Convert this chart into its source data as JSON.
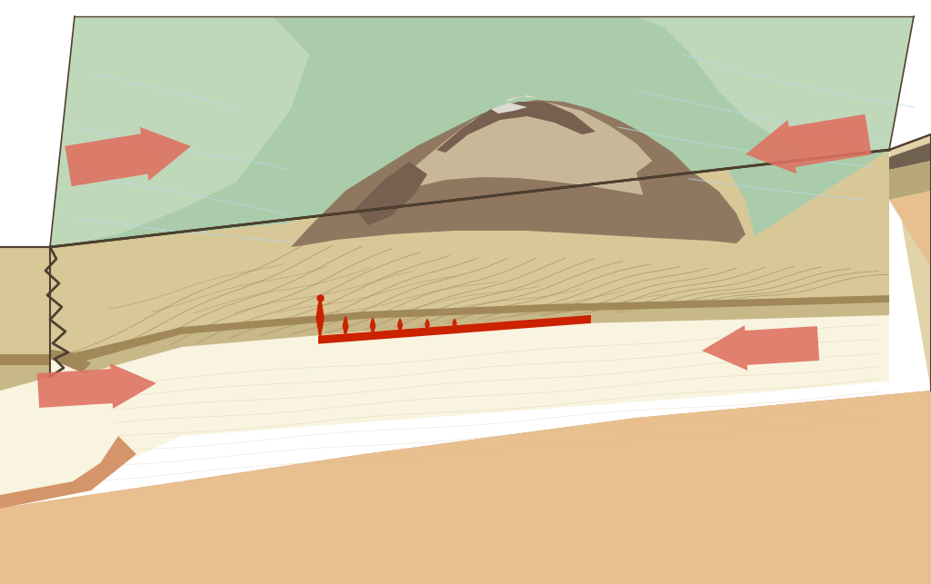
{
  "bg_color": "#ffffff",
  "arrow_color": "#E07060",
  "magma_color": "#CC2200",
  "terrain_green_light": "#C8DEC0",
  "terrain_green": "#AACCAA",
  "terrain_green_dark": "#88AA88",
  "mountain_light": "#C8B898",
  "mountain_dark": "#907860",
  "mountain_rocky": "#786050",
  "sediment_light": "#E8DDB8",
  "sediment_mid": "#D8C898",
  "sediment_dark": "#C0A870",
  "foliation_color": "#C0AA78",
  "foliation_line": "#A89060",
  "oceanic_upper": "#E0D4A8",
  "oceanic_lower": "#C8B888",
  "oceanic_dark_stripe": "#A08858",
  "subplate_color": "#F0E8CC",
  "subplate_light": "#F8F4E0",
  "mantle_peach": "#E8C090",
  "mantle_orange": "#D4956A",
  "right_wall_light": "#E0D4A8",
  "right_wall_dark": "#B8A878",
  "right_stripe_dark": "#706050",
  "left_wall_color": "#D0C090",
  "trench_color": "#C0A868",
  "fault_line_color": "#504030",
  "river_color": "#B8D8E8"
}
